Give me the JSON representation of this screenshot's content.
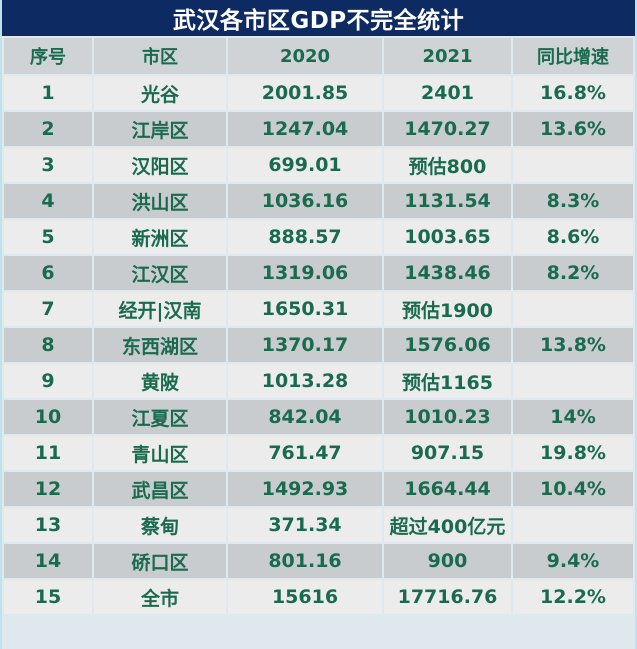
{
  "title": "武汉各市区GDP不完全统计",
  "headers": [
    "序号",
    "市区",
    "2020",
    "2021",
    "同比增速"
  ],
  "rows": [
    [
      "1",
      "光谷",
      "2001.85",
      "2401",
      "16.8%"
    ],
    [
      "2",
      "江岸区",
      "1247.04",
      "1470.27",
      "13.6%"
    ],
    [
      "3",
      "汉阳区",
      "699.01",
      "预估800",
      ""
    ],
    [
      "4",
      "洪山区",
      "1036.16",
      "1131.54",
      "8.3%"
    ],
    [
      "5",
      "新洲区",
      "888.57",
      "1003.65",
      "8.6%"
    ],
    [
      "6",
      "江汉区",
      "1319.06",
      "1438.46",
      "8.2%"
    ],
    [
      "7",
      "经开|汉南",
      "1650.31",
      "预估1900",
      ""
    ],
    [
      "8",
      "东西湖区",
      "1370.17",
      "1576.06",
      "13.8%"
    ],
    [
      "9",
      "黄陂",
      "1013.28",
      "预估1165",
      ""
    ],
    [
      "10",
      "江夏区",
      "842.04",
      "1010.23",
      "14%"
    ],
    [
      "11",
      "青山区",
      "761.47",
      "907.15",
      "19.8%"
    ],
    [
      "12",
      "武昌区",
      "1492.93",
      "1664.44",
      "10.4%"
    ],
    [
      "13",
      "蔡甸",
      "371.34",
      "超过400亿元",
      ""
    ],
    [
      "14",
      "硚口区",
      "801.16",
      "900",
      "9.4%"
    ],
    [
      "15",
      "全市",
      "15616",
      "17716.76",
      "12.2%"
    ]
  ],
  "colors": {
    "title_bg": "#0e2a63",
    "title_text": "#ffffff",
    "header_bg": "#cfd3d6",
    "row_light": "#ececed",
    "row_dark": "#c9cccf",
    "text": "#1a6a4e"
  }
}
